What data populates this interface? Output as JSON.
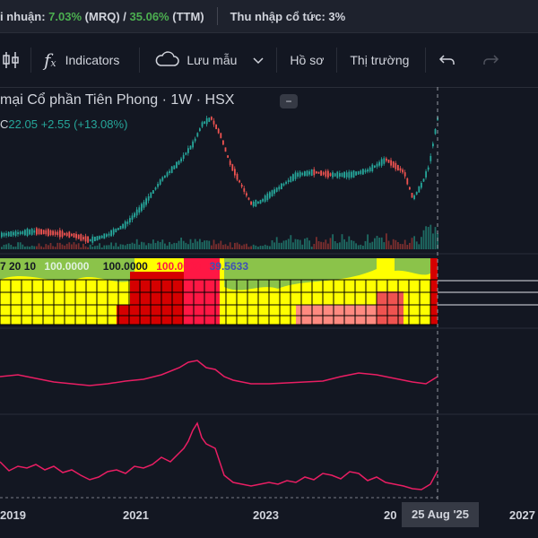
{
  "topbar": {
    "profit_label": "i nhuận:",
    "profit_mrq": "7.03%",
    "profit_mrq_suffix": "(MRQ) /",
    "profit_ttm": "35.06%",
    "profit_ttm_suffix": "(TTM)",
    "dividend": "Thu nhập cổ tức: 3%"
  },
  "toolbar": {
    "indicators_label": "Indicators",
    "save_label": "Lưu mẫu",
    "profile_label": "Hồ sơ",
    "market_label": "Thị trường"
  },
  "chart": {
    "title": "mại Cổ phần Tiên Phong · 1W · HSX",
    "ohlc_prefix": "C",
    "close": "22.05",
    "change": "+2.55 (+13.08%)",
    "indicator_values": [
      "7 20 10",
      "100.0000",
      "100.0000",
      "100.0000",
      "39.5633"
    ],
    "x_ticks": [
      "2019",
      "2021",
      "2023",
      "20",
      "2027"
    ],
    "cursor_date": "25 Aug '25"
  },
  "colors": {
    "background": "#131722",
    "up": "#26a69a",
    "down": "#ef5350",
    "indicator_line": "#e91e63",
    "band_yellow": "#ffff00",
    "band_green": "#8bc34a"
  }
}
